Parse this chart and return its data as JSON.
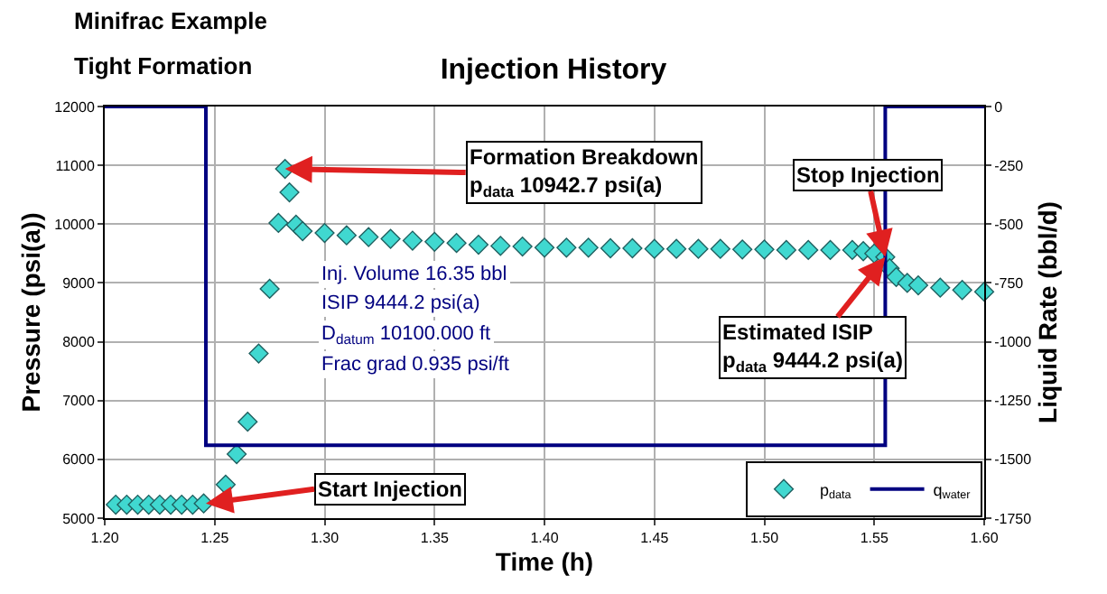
{
  "chart_data": {
    "type": "scatter",
    "title": "Injection History",
    "subtitle": "Minifrac Example\nTight Formation",
    "xlabel": "Time (h)",
    "ylabel": "Pressure (psi(a))",
    "y2label": "Liquid Rate (bbl/d)",
    "xlim": [
      1.2,
      1.6
    ],
    "xticks": [
      {
        "value": 1.2,
        "label": "1.20"
      },
      {
        "value": 1.25,
        "label": "1.25"
      },
      {
        "value": 1.3,
        "label": "1.30"
      },
      {
        "value": 1.35,
        "label": "1.35"
      },
      {
        "value": 1.4,
        "label": "1.40"
      },
      {
        "value": 1.45,
        "label": "1.45"
      },
      {
        "value": 1.5,
        "label": "1.50"
      },
      {
        "value": 1.55,
        "label": "1.55"
      },
      {
        "value": 1.6,
        "label": "1.60"
      }
    ],
    "ylim": [
      5000,
      12000
    ],
    "yticks": [
      5000,
      6000,
      7000,
      8000,
      9000,
      10000,
      11000,
      12000
    ],
    "y2lim": [
      -1750,
      0
    ],
    "y2ticks": [
      -1750,
      -1500,
      -1250,
      -1000,
      -750,
      -500,
      -250,
      0
    ],
    "grid": true,
    "legend": "bottom right",
    "series": [
      {
        "name": "p$_{data}$",
        "marker": "diamond",
        "color": "#40d8d0",
        "x": [
          1.205,
          1.21,
          1.215,
          1.22,
          1.225,
          1.23,
          1.235,
          1.24,
          1.245,
          1.255,
          1.26,
          1.265,
          1.27,
          1.275,
          1.279,
          1.282,
          1.284,
          1.287,
          1.29,
          1.3,
          1.31,
          1.32,
          1.33,
          1.34,
          1.35,
          1.36,
          1.37,
          1.38,
          1.39,
          1.4,
          1.41,
          1.42,
          1.43,
          1.44,
          1.45,
          1.46,
          1.47,
          1.48,
          1.49,
          1.5,
          1.51,
          1.52,
          1.53,
          1.54,
          1.545,
          1.55,
          1.555,
          1.557,
          1.56,
          1.565,
          1.57,
          1.58,
          1.59,
          1.6
        ],
        "values": [
          5230,
          5230,
          5230,
          5230,
          5230,
          5230,
          5230,
          5230,
          5250,
          5570,
          6090,
          6640,
          7800,
          8900,
          10020,
          10940,
          10540,
          9990,
          9880,
          9850,
          9810,
          9780,
          9750,
          9720,
          9700,
          9680,
          9650,
          9630,
          9620,
          9600,
          9600,
          9600,
          9590,
          9590,
          9580,
          9580,
          9580,
          9580,
          9570,
          9570,
          9560,
          9560,
          9560,
          9560,
          9540,
          9500,
          9440,
          9250,
          9100,
          9000,
          8960,
          8920,
          8880,
          8850
        ]
      },
      {
        "name": "q$_{water}$",
        "type": "line",
        "axis": "y2",
        "color": "#000080",
        "marker": "none",
        "x": [
          1.2,
          1.246,
          1.246,
          1.555,
          1.555,
          1.6
        ],
        "values": [
          0,
          0,
          -1440,
          -1440,
          0,
          0
        ]
      }
    ],
    "annotations": [
      {
        "text": "Formation Breakdown\np$_{data}$ 10942.7 psi(a)",
        "x": 1.282,
        "y": 10940
      },
      {
        "text": "Start Injection",
        "x": 1.246,
        "y": 5250
      },
      {
        "text": "Stop Injection",
        "x": 1.555,
        "y": 9440
      },
      {
        "text": "Estimated ISIP\np$_{data}$ 9444.2 psi(a)",
        "x": 1.555,
        "y": 9440
      },
      "Inj. Volume 16.35 bbl",
      "ISIP 9444.2 psi(a)",
      "D$_{datum}$ 10100.000 ft",
      "Frac grad 0.935 psi/ft"
    ]
  }
}
